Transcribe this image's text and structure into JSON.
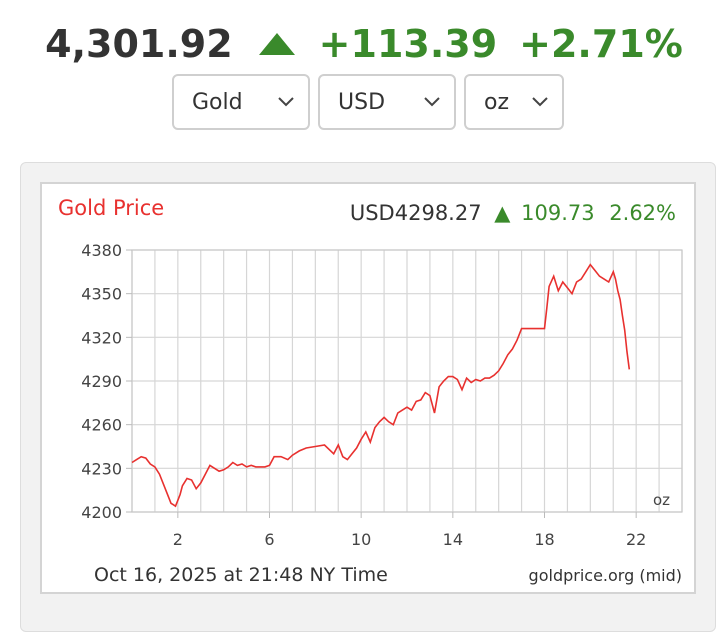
{
  "ticker": {
    "price": "4,301.92",
    "change": "+113.39",
    "change_pct": "+2.71%",
    "direction": "up-arrow-icon",
    "up_color": "#3a8a2b"
  },
  "selectors": {
    "metal": "Gold",
    "currency": "USD",
    "unit": "oz"
  },
  "chart_data": {
    "type": "line",
    "title": "Gold Price",
    "header_price": "USD4298.27",
    "header_change": "109.73",
    "header_change_pct": "2.62%",
    "unit_label": "oz",
    "footer_left": "Oct 16, 2025 at 21:48 NY Time",
    "footer_right": "goldprice.org (mid)",
    "xlim": [
      0,
      24
    ],
    "ylim": [
      4200,
      4380
    ],
    "xticks": [
      2,
      6,
      10,
      14,
      18,
      22
    ],
    "yticks": [
      4200,
      4230,
      4260,
      4290,
      4320,
      4350,
      4380
    ],
    "grid": true,
    "line_color": "#e8312f",
    "title_color": "#e8312f",
    "series": [
      {
        "x": [
          0.0,
          0.2,
          0.4,
          0.6,
          0.8,
          1.0,
          1.2,
          1.4,
          1.6,
          1.7,
          1.8,
          1.9,
          2.0,
          2.1,
          2.2,
          2.4,
          2.6,
          2.8,
          3.0,
          3.2,
          3.4,
          3.6,
          3.8,
          4.0,
          4.2,
          4.4,
          4.6,
          4.8,
          5.0,
          5.2,
          5.4,
          5.6,
          5.8,
          6.0,
          6.2,
          6.5,
          6.8,
          7.0,
          7.3,
          7.6,
          8.0,
          8.4,
          8.8,
          9.0,
          9.2,
          9.4,
          9.6,
          9.8,
          10.0,
          10.2,
          10.4,
          10.6,
          10.8,
          11.0,
          11.2,
          11.4,
          11.6,
          11.8,
          12.0,
          12.2,
          12.4,
          12.6,
          12.8,
          13.0,
          13.2,
          13.4,
          13.6,
          13.8,
          14.0,
          14.2,
          14.4,
          14.6,
          14.8,
          15.0,
          15.2,
          15.4,
          15.6,
          15.8,
          16.0,
          16.2,
          16.4,
          16.6,
          16.8,
          17.0,
          17.3,
          17.6,
          17.9,
          18.0,
          18.1,
          18.2,
          18.4,
          18.6,
          18.8,
          19.0,
          19.2,
          19.4,
          19.6,
          19.8,
          20.0,
          20.2,
          20.4,
          20.6,
          20.8,
          21.0,
          21.1,
          21.2,
          21.3,
          21.4,
          21.5,
          21.6,
          21.7
        ],
        "y": [
          4234,
          4236,
          4238,
          4237,
          4233,
          4231,
          4226,
          4218,
          4210,
          4206,
          4205,
          4204,
          4208,
          4212,
          4218,
          4223,
          4222,
          4216,
          4220,
          4226,
          4232,
          4230,
          4228,
          4229,
          4231,
          4234,
          4232,
          4233,
          4231,
          4232,
          4231,
          4231,
          4231,
          4232,
          4238,
          4238,
          4236,
          4239,
          4242,
          4244,
          4245,
          4246,
          4240,
          4246,
          4238,
          4236,
          4240,
          4244,
          4250,
          4255,
          4248,
          4258,
          4262,
          4265,
          4262,
          4260,
          4268,
          4270,
          4272,
          4270,
          4276,
          4277,
          4282,
          4280,
          4268,
          4286,
          4290,
          4293,
          4293,
          4291,
          4284,
          4292,
          4289,
          4291,
          4290,
          4292,
          4292,
          4294,
          4297,
          4302,
          4308,
          4312,
          4318,
          4326,
          4326,
          4326,
          4326,
          4326,
          4340,
          4355,
          4362,
          4352,
          4358,
          4354,
          4350,
          4358,
          4360,
          4365,
          4370,
          4366,
          4362,
          4360,
          4358,
          4365,
          4360,
          4352,
          4346,
          4335,
          4325,
          4310,
          4298
        ]
      }
    ]
  }
}
